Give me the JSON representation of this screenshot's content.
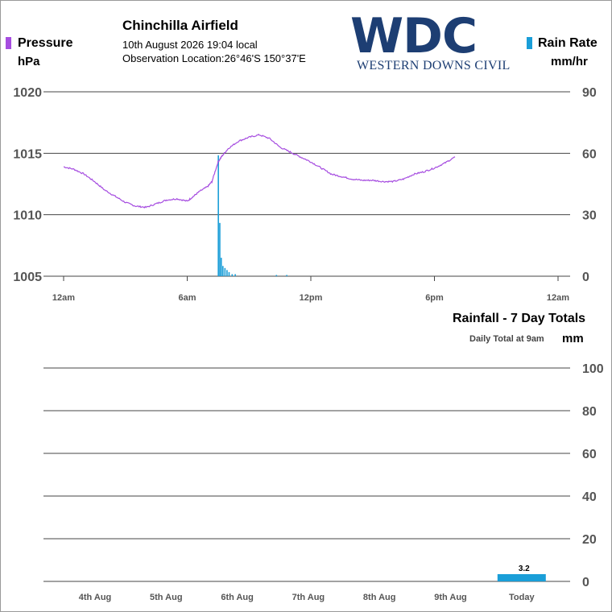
{
  "header": {
    "station": "Chinchilla Airfield",
    "datetime": "10th August 2026  19:04 local",
    "location": "Observation Location:26°46'S 150°37'E",
    "logo_main": "WDC",
    "logo_sub": "WESTERN DOWNS CIVIL"
  },
  "colors": {
    "pressure": "#a64de0",
    "rain": "#1a9ed8",
    "logo": "#1d3e73",
    "grid": "#444444"
  },
  "chart_data": [
    {
      "type": "line",
      "x_unit": "hours since 12am",
      "x_ticks": [
        0,
        6,
        12,
        18,
        24
      ],
      "x_tick_labels": [
        "12am",
        "6am",
        "12pm",
        "6pm",
        "12am"
      ],
      "xlim": [
        0,
        24
      ],
      "series": [
        {
          "name": "Pressure",
          "unit": "hPa",
          "axis": "left",
          "ylim": [
            1005,
            1020
          ],
          "y_ticks": [
            1005,
            1010,
            1015,
            1020
          ],
          "x": [
            0,
            0.5,
            1,
            1.5,
            2,
            2.5,
            3,
            3.5,
            4,
            4.5,
            5,
            5.5,
            6,
            6.3,
            6.6,
            7,
            7.2,
            7.5,
            7.7,
            8,
            8.5,
            9,
            9.5,
            10,
            10.5,
            11,
            11.5,
            12,
            12.5,
            13,
            13.5,
            14,
            14.5,
            15,
            15.5,
            16,
            16.5,
            17,
            17.5,
            18,
            18.5,
            19
          ],
          "values": [
            1013.9,
            1013.7,
            1013.3,
            1012.7,
            1012.0,
            1011.5,
            1011.0,
            1010.7,
            1010.6,
            1010.9,
            1011.2,
            1011.3,
            1011.1,
            1011.5,
            1011.9,
            1012.3,
            1012.7,
            1014.3,
            1014.8,
            1015.4,
            1016.0,
            1016.3,
            1016.5,
            1016.2,
            1015.5,
            1015.1,
            1014.7,
            1014.3,
            1013.8,
            1013.3,
            1013.1,
            1012.9,
            1012.8,
            1012.8,
            1012.7,
            1012.7,
            1012.9,
            1013.3,
            1013.5,
            1013.8,
            1014.2,
            1014.7
          ]
        },
        {
          "name": "Rain Rate",
          "unit": "mm/hr",
          "axis": "right",
          "type": "bar",
          "ylim": [
            0,
            90
          ],
          "y_ticks": [
            0,
            30,
            60,
            90
          ],
          "x": [
            7.48,
            7.55,
            7.62,
            7.7,
            7.8,
            7.9,
            8.0,
            8.15,
            8.3,
            10.3,
            10.8
          ],
          "values": [
            59,
            26,
            9,
            5,
            4,
            3,
            2,
            1,
            1,
            0.6,
            0.6
          ]
        }
      ]
    },
    {
      "type": "bar",
      "title": "Rainfall - 7 Day Totals",
      "subtitle": "Daily Total at 9am",
      "ylabel": "mm",
      "categories": [
        "4th Aug",
        "5th Aug",
        "6th Aug",
        "7th Aug",
        "8th Aug",
        "9th Aug",
        "Today"
      ],
      "values": [
        0,
        0,
        0,
        0,
        0,
        0,
        3.2
      ],
      "data_labels": [
        "",
        "",
        "",
        "",
        "",
        "",
        "3.2"
      ],
      "ylim": [
        0,
        100
      ],
      "y_ticks": [
        0,
        20,
        40,
        60,
        80,
        100
      ],
      "grid": true
    }
  ]
}
